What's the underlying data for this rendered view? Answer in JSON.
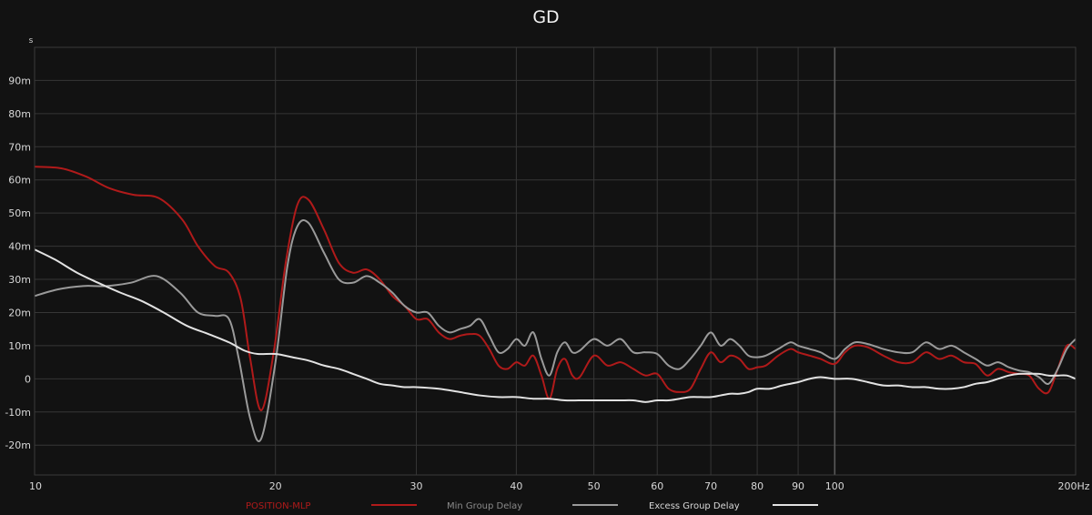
{
  "chart_data": {
    "type": "line",
    "title": "GD",
    "ylabel": "s",
    "x_scale": "log",
    "xlim": [
      10,
      200
    ],
    "ylim": [
      -0.029,
      0.1
    ],
    "grid": true,
    "legend_placement": "bottom",
    "x_ticks": [
      {
        "value": 10,
        "label": "10"
      },
      {
        "value": 20,
        "label": "20"
      },
      {
        "value": 30,
        "label": "30"
      },
      {
        "value": 40,
        "label": "40"
      },
      {
        "value": 50,
        "label": "50"
      },
      {
        "value": 60,
        "label": "60"
      },
      {
        "value": 70,
        "label": "70"
      },
      {
        "value": 80,
        "label": "80"
      },
      {
        "value": 90,
        "label": "90"
      },
      {
        "value": 100,
        "label": "100"
      },
      {
        "value": 200,
        "label": "200Hz"
      }
    ],
    "y_ticks": [
      {
        "value": 0.09,
        "label": "90m"
      },
      {
        "value": 0.08,
        "label": "80m"
      },
      {
        "value": 0.07,
        "label": "70m"
      },
      {
        "value": 0.06,
        "label": "60m"
      },
      {
        "value": 0.05,
        "label": "50m"
      },
      {
        "value": 0.04,
        "label": "40m"
      },
      {
        "value": 0.03,
        "label": "30m"
      },
      {
        "value": 0.02,
        "label": "20m"
      },
      {
        "value": 0.01,
        "label": "10m"
      },
      {
        "value": 0,
        "label": "0"
      },
      {
        "value": -0.01,
        "label": "-10m"
      },
      {
        "value": -0.02,
        "label": "-20m"
      }
    ],
    "series": [
      {
        "name": "POSITION-MLP",
        "color": "#b01a1a",
        "x": [
          10,
          10.8,
          11.6,
          12.4,
          13.3,
          14.3,
          15.3,
          16,
          16.8,
          17.5,
          18.1,
          18.6,
          19.2,
          19.9,
          20.6,
          21.3,
          22,
          23,
          24,
          25,
          26,
          27,
          28,
          29,
          30,
          31,
          32,
          33,
          34,
          35,
          36,
          37,
          38,
          39,
          40,
          41,
          42,
          43,
          44,
          45,
          46,
          47,
          48,
          50,
          52,
          54,
          56,
          58,
          60,
          62,
          64,
          66,
          68,
          70,
          72,
          74,
          76,
          78,
          80,
          82,
          85,
          88,
          90,
          93,
          96,
          100,
          103,
          106,
          110,
          115,
          120,
          125,
          130,
          135,
          140,
          145,
          150,
          155,
          160,
          165,
          170,
          175,
          180,
          185,
          190,
          195,
          200
        ],
        "y": [
          0.064,
          0.0635,
          0.061,
          0.0575,
          0.0555,
          0.0545,
          0.048,
          0.04,
          0.034,
          0.032,
          0.024,
          0.006,
          -0.0095,
          0.008,
          0.035,
          0.0525,
          0.054,
          0.045,
          0.035,
          0.032,
          0.033,
          0.03,
          0.025,
          0.022,
          0.018,
          0.018,
          0.014,
          0.012,
          0.013,
          0.0135,
          0.013,
          0.009,
          0.004,
          0.003,
          0.005,
          0.004,
          0.007,
          0.001,
          -0.006,
          0.003,
          0.006,
          0.001,
          0.0005,
          0.007,
          0.004,
          0.005,
          0.003,
          0.001,
          0.0015,
          -0.003,
          -0.004,
          -0.003,
          0.003,
          0.008,
          0.005,
          0.007,
          0.006,
          0.003,
          0.0035,
          0.004,
          0.007,
          0.009,
          0.008,
          0.007,
          0.006,
          0.0045,
          0.008,
          0.01,
          0.0095,
          0.007,
          0.005,
          0.005,
          0.008,
          0.006,
          0.007,
          0.005,
          0.0045,
          0.001,
          0.003,
          0.002,
          0.0015,
          0.001,
          -0.003,
          -0.004,
          0.003,
          0.01,
          0.009
        ]
      },
      {
        "name": "Min Group Delay",
        "color": "#9a9a9a",
        "x": [
          10,
          10.7,
          11.5,
          12.3,
          13.2,
          14.2,
          15.2,
          16,
          16.8,
          17.5,
          18,
          18.6,
          19.2,
          20,
          20.7,
          21.3,
          22,
          23,
          24,
          25,
          26,
          27,
          28,
          29,
          30,
          31,
          32,
          33,
          34,
          35,
          36,
          37,
          38,
          39,
          40,
          41,
          42,
          43,
          44,
          45,
          46,
          47,
          48,
          50,
          52,
          54,
          56,
          58,
          60,
          62,
          64,
          66,
          68,
          70,
          72,
          74,
          76,
          78,
          80,
          82,
          85,
          88,
          90,
          93,
          96,
          100,
          103,
          106,
          110,
          115,
          120,
          125,
          130,
          135,
          140,
          145,
          150,
          155,
          160,
          165,
          170,
          175,
          180,
          185,
          190,
          195,
          200
        ],
        "y": [
          0.025,
          0.027,
          0.028,
          0.028,
          0.029,
          0.031,
          0.026,
          0.02,
          0.019,
          0.018,
          0.006,
          -0.012,
          -0.018,
          0.005,
          0.034,
          0.046,
          0.047,
          0.038,
          0.03,
          0.029,
          0.031,
          0.029,
          0.026,
          0.022,
          0.02,
          0.02,
          0.016,
          0.014,
          0.015,
          0.016,
          0.018,
          0.013,
          0.008,
          0.009,
          0.012,
          0.01,
          0.014,
          0.006,
          0.001,
          0.008,
          0.011,
          0.008,
          0.0085,
          0.012,
          0.01,
          0.012,
          0.008,
          0.008,
          0.0075,
          0.004,
          0.003,
          0.006,
          0.01,
          0.014,
          0.01,
          0.012,
          0.01,
          0.007,
          0.0065,
          0.007,
          0.009,
          0.011,
          0.01,
          0.009,
          0.008,
          0.006,
          0.009,
          0.011,
          0.0105,
          0.009,
          0.008,
          0.008,
          0.011,
          0.009,
          0.01,
          0.008,
          0.006,
          0.004,
          0.005,
          0.0035,
          0.0025,
          0.002,
          0.0005,
          -0.0015,
          0.003,
          0.009,
          0.012
        ]
      },
      {
        "name": "Excess Group Delay",
        "color": "#e2e2e2",
        "x": [
          10,
          10.6,
          11.3,
          12,
          12.8,
          13.6,
          14.5,
          15.5,
          16.5,
          17.5,
          18.3,
          19,
          20,
          21,
          22,
          23,
          24,
          25,
          26,
          27,
          28,
          29,
          30,
          32,
          34,
          36,
          38,
          40,
          42,
          44,
          46,
          48,
          50,
          52,
          54,
          56,
          58,
          60,
          62,
          64,
          66,
          68,
          70,
          72,
          74,
          76,
          78,
          80,
          83,
          86,
          90,
          93,
          96,
          100,
          105,
          110,
          115,
          120,
          125,
          130,
          135,
          140,
          145,
          150,
          155,
          160,
          165,
          170,
          175,
          180,
          185,
          190,
          195,
          200
        ],
        "y": [
          0.039,
          0.036,
          0.032,
          0.029,
          0.026,
          0.0235,
          0.02,
          0.016,
          0.0135,
          0.011,
          0.0085,
          0.0075,
          0.0075,
          0.0065,
          0.0055,
          0.004,
          0.003,
          0.0015,
          0.0,
          -0.0015,
          -0.002,
          -0.0025,
          -0.0025,
          -0.003,
          -0.004,
          -0.005,
          -0.0055,
          -0.0055,
          -0.006,
          -0.006,
          -0.0065,
          -0.0065,
          -0.0065,
          -0.0065,
          -0.0065,
          -0.0065,
          -0.007,
          -0.0065,
          -0.0065,
          -0.006,
          -0.0055,
          -0.0055,
          -0.0055,
          -0.005,
          -0.0045,
          -0.0045,
          -0.004,
          -0.003,
          -0.003,
          -0.002,
          -0.001,
          0.0,
          0.0005,
          0.0,
          0.0,
          -0.001,
          -0.002,
          -0.002,
          -0.0025,
          -0.0025,
          -0.003,
          -0.003,
          -0.0025,
          -0.0015,
          -0.001,
          0.0,
          0.001,
          0.0015,
          0.0015,
          0.0015,
          0.001,
          0.001,
          0.001,
          0.0
        ]
      }
    ]
  }
}
